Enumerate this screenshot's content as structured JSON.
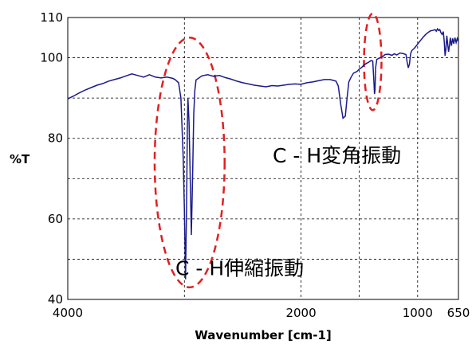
{
  "chart_data": {
    "type": "line",
    "title": "",
    "xlabel": "Wavenumber [cm-1]",
    "ylabel": "%T",
    "x_ticks": [
      {
        "value": 4000,
        "label": "4000"
      },
      {
        "value": 2000,
        "label": "2000"
      },
      {
        "value": 1000,
        "label": "1000"
      },
      {
        "value": 650,
        "label": "650"
      }
    ],
    "x_grid": [
      3000,
      2000,
      1500,
      1000
    ],
    "y_ticks": [
      {
        "value": 40,
        "label": "40"
      },
      {
        "value": 60,
        "label": "60"
      },
      {
        "value": 80,
        "label": "80"
      },
      {
        "value": 100,
        "label": "100"
      },
      {
        "value": 110,
        "label": "110"
      }
    ],
    "y_grid": [
      50,
      60,
      70,
      80,
      90,
      100
    ],
    "ylim": [
      40,
      110
    ],
    "xlim": [
      4000,
      650
    ],
    "series_color": "#1a1a8c",
    "grid": true,
    "series": [
      {
        "points": [
          [
            4000,
            89.8
          ],
          [
            3950,
            90.5
          ],
          [
            3900,
            91.3
          ],
          [
            3850,
            92.0
          ],
          [
            3800,
            92.6
          ],
          [
            3750,
            93.2
          ],
          [
            3700,
            93.6
          ],
          [
            3650,
            94.2
          ],
          [
            3600,
            94.6
          ],
          [
            3550,
            95.0
          ],
          [
            3500,
            95.5
          ],
          [
            3450,
            96.0
          ],
          [
            3400,
            95.6
          ],
          [
            3350,
            95.2
          ],
          [
            3300,
            95.8
          ],
          [
            3250,
            95.2
          ],
          [
            3200,
            95.0
          ],
          [
            3150,
            95.2
          ],
          [
            3100,
            94.9
          ],
          [
            3080,
            94.6
          ],
          [
            3050,
            93.8
          ],
          [
            3030,
            90.0
          ],
          [
            3010,
            75.0
          ],
          [
            3000,
            62.0
          ],
          [
            2990,
            45.0
          ],
          [
            2980,
            66.0
          ],
          [
            2975,
            82.0
          ],
          [
            2970,
            90.0
          ],
          [
            2960,
            84.0
          ],
          [
            2950,
            70.0
          ],
          [
            2940,
            56.0
          ],
          [
            2930,
            70.0
          ],
          [
            2920,
            86.0
          ],
          [
            2910,
            92.0
          ],
          [
            2900,
            94.5
          ],
          [
            2850,
            95.5
          ],
          [
            2800,
            95.8
          ],
          [
            2750,
            95.4
          ],
          [
            2700,
            95.6
          ],
          [
            2650,
            95.1
          ],
          [
            2600,
            94.7
          ],
          [
            2550,
            94.2
          ],
          [
            2500,
            93.8
          ],
          [
            2450,
            93.5
          ],
          [
            2400,
            93.2
          ],
          [
            2350,
            93.0
          ],
          [
            2300,
            92.8
          ],
          [
            2250,
            93.1
          ],
          [
            2200,
            93.0
          ],
          [
            2150,
            93.2
          ],
          [
            2100,
            93.4
          ],
          [
            2050,
            93.5
          ],
          [
            2000,
            93.4
          ],
          [
            1950,
            93.8
          ],
          [
            1900,
            94.0
          ],
          [
            1850,
            94.3
          ],
          [
            1800,
            94.6
          ],
          [
            1750,
            94.6
          ],
          [
            1700,
            94.2
          ],
          [
            1680,
            93.0
          ],
          [
            1660,
            88.5
          ],
          [
            1640,
            85.0
          ],
          [
            1620,
            85.5
          ],
          [
            1605,
            90.0
          ],
          [
            1590,
            94.0
          ],
          [
            1570,
            95.2
          ],
          [
            1550,
            96.2
          ],
          [
            1520,
            96.6
          ],
          [
            1500,
            97.2
          ],
          [
            1480,
            97.6
          ],
          [
            1460,
            98.2
          ],
          [
            1440,
            98.6
          ],
          [
            1420,
            98.9
          ],
          [
            1400,
            99.3
          ],
          [
            1385,
            99.2
          ],
          [
            1375,
            94.0
          ],
          [
            1370,
            91.0
          ],
          [
            1365,
            92.0
          ],
          [
            1360,
            97.5
          ],
          [
            1350,
            99.6
          ],
          [
            1330,
            99.9
          ],
          [
            1300,
            100.3
          ],
          [
            1280,
            100.8
          ],
          [
            1250,
            100.9
          ],
          [
            1220,
            100.6
          ],
          [
            1200,
            101.0
          ],
          [
            1180,
            100.7
          ],
          [
            1150,
            101.2
          ],
          [
            1120,
            101.0
          ],
          [
            1100,
            100.8
          ],
          [
            1090,
            99.0
          ],
          [
            1080,
            97.5
          ],
          [
            1070,
            98.5
          ],
          [
            1060,
            101.0
          ],
          [
            1050,
            101.8
          ],
          [
            1030,
            102.3
          ],
          [
            1010,
            103.0
          ],
          [
            990,
            103.8
          ],
          [
            970,
            104.5
          ],
          [
            950,
            105.2
          ],
          [
            930,
            105.8
          ],
          [
            910,
            106.3
          ],
          [
            890,
            106.7
          ],
          [
            870,
            106.8
          ],
          [
            850,
            107.0
          ],
          [
            840,
            106.6
          ],
          [
            830,
            107.2
          ],
          [
            820,
            106.8
          ],
          [
            810,
            107.0
          ],
          [
            800,
            106.2
          ],
          [
            790,
            105.8
          ],
          [
            780,
            106.5
          ],
          [
            772,
            104.0
          ],
          [
            765,
            100.5
          ],
          [
            758,
            102.0
          ],
          [
            750,
            105.5
          ],
          [
            742,
            103.5
          ],
          [
            735,
            101.5
          ],
          [
            728,
            102.8
          ],
          [
            720,
            105.0
          ],
          [
            710,
            103.0
          ],
          [
            700,
            104.8
          ],
          [
            690,
            103.5
          ],
          [
            680,
            105.0
          ],
          [
            670,
            103.8
          ],
          [
            660,
            104.8
          ],
          [
            650,
            104.0
          ]
        ]
      }
    ],
    "annotations": [
      {
        "text": "C - H変角振動",
        "x": 1000,
        "y": 76
      },
      {
        "text": "C - H伸縮振動",
        "x": 2000,
        "y": 48
      }
    ],
    "highlight_ellipses": [
      {
        "cx": 2955,
        "cy": 74,
        "rx": 300,
        "ry": 31
      },
      {
        "cx": 1385,
        "cy": 99,
        "rx": 75,
        "ry": 12
      }
    ],
    "highlight_color": "#e02020"
  }
}
